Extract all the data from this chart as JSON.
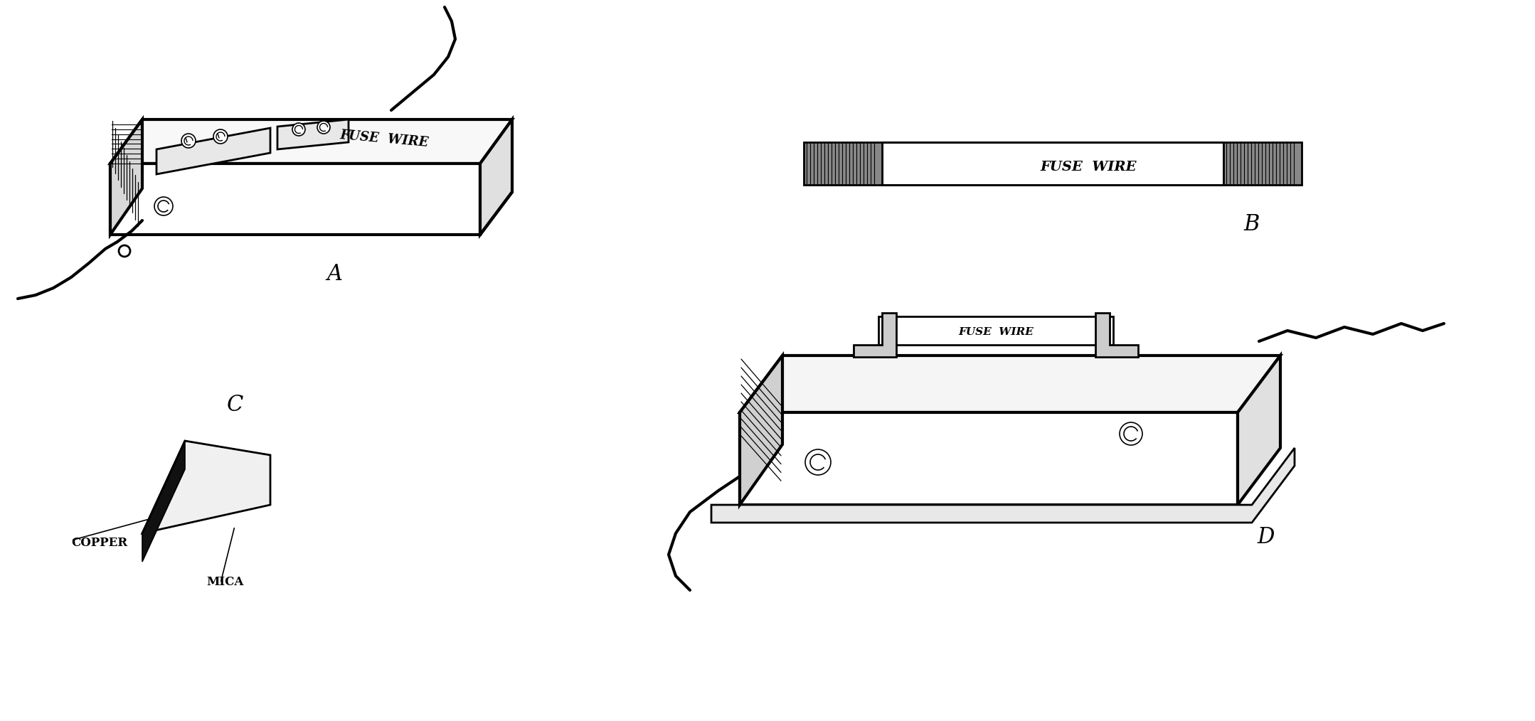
{
  "bg_color": "#ffffff",
  "line_color": "#000000",
  "fig_width": 21.58,
  "fig_height": 10.14,
  "label_A": "A",
  "label_B": "B",
  "label_C": "C",
  "label_D": "D",
  "text_fuse_wire_A": "FUSE  WIRE",
  "text_fuse_wire_B": "FUSE  WIRE",
  "text_fuse_wire_D": "FUSE  WIRE",
  "text_copper": "COPPER",
  "text_mica": "MICA",
  "label_fontsize": 22,
  "annotation_fontsize": 12,
  "fuse_wire_fontsize_A": 13,
  "fuse_wire_fontsize_B": 14,
  "fuse_wire_fontsize_D": 11
}
